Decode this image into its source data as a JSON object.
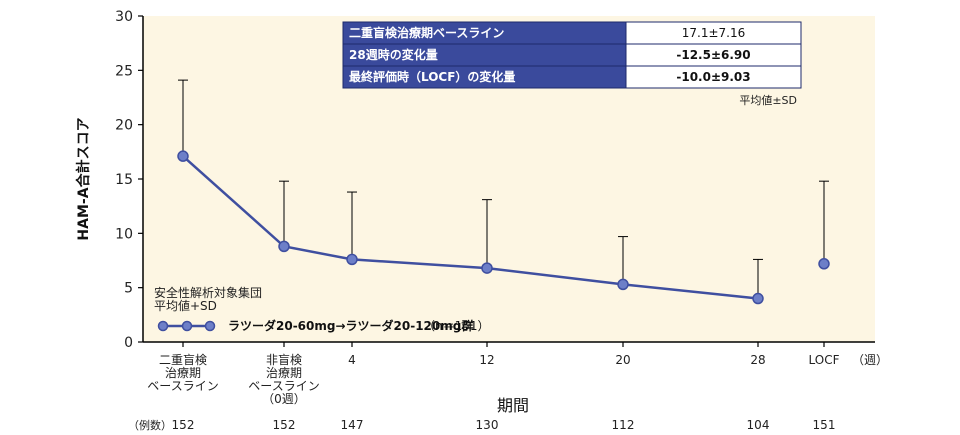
{
  "chart_data": {
    "type": "line",
    "ylabel": "HAM-A合計スコア",
    "xlabel": "期間",
    "x_unit": "（週）",
    "ylim": [
      0,
      30
    ],
    "yticks": [
      "0",
      "5",
      "10",
      "15",
      "20",
      "25",
      "30"
    ],
    "categories": [
      [
        "二重盲検",
        "治療期",
        "ベースライン"
      ],
      [
        "非盲検",
        "治療期",
        "ベースライン",
        "（0週）"
      ],
      [
        "4"
      ],
      [
        "12"
      ],
      [
        "20"
      ],
      [
        "28"
      ],
      [
        "LOCF"
      ]
    ],
    "series": [
      {
        "name": "ラツーダ20-60mg→ラツーダ20-120mg群",
        "n_label": "（n＝151）",
        "values": [
          17.1,
          8.8,
          7.6,
          6.8,
          5.3,
          4.0,
          7.2
        ],
        "sd_upper": [
          24.1,
          14.8,
          13.8,
          13.1,
          9.7,
          7.6,
          14.8
        ],
        "connected": [
          true,
          true,
          true,
          true,
          true,
          true,
          false
        ]
      }
    ],
    "annotation": [
      "安全性解析対象集団",
      "平均値+SD"
    ],
    "n_row_label": "（例数）",
    "n_counts": [
      "152",
      "152",
      "147",
      "130",
      "112",
      "104",
      "151"
    ],
    "table": {
      "rows": [
        {
          "label": "二重盲検治療期ベースライン",
          "value": "17.1±7.16",
          "bold": false
        },
        {
          "label": "28週時の変化量",
          "value": "-12.5±6.90",
          "bold": true
        },
        {
          "label": "最終評価時（LOCF）の変化量",
          "value": "-10.0±9.03",
          "bold": true
        }
      ],
      "note": "平均値±SD"
    },
    "colors": {
      "line": "#3f4fa0",
      "plot_bg": "#fdf6e3",
      "table_head": "#3a4a9c"
    }
  }
}
